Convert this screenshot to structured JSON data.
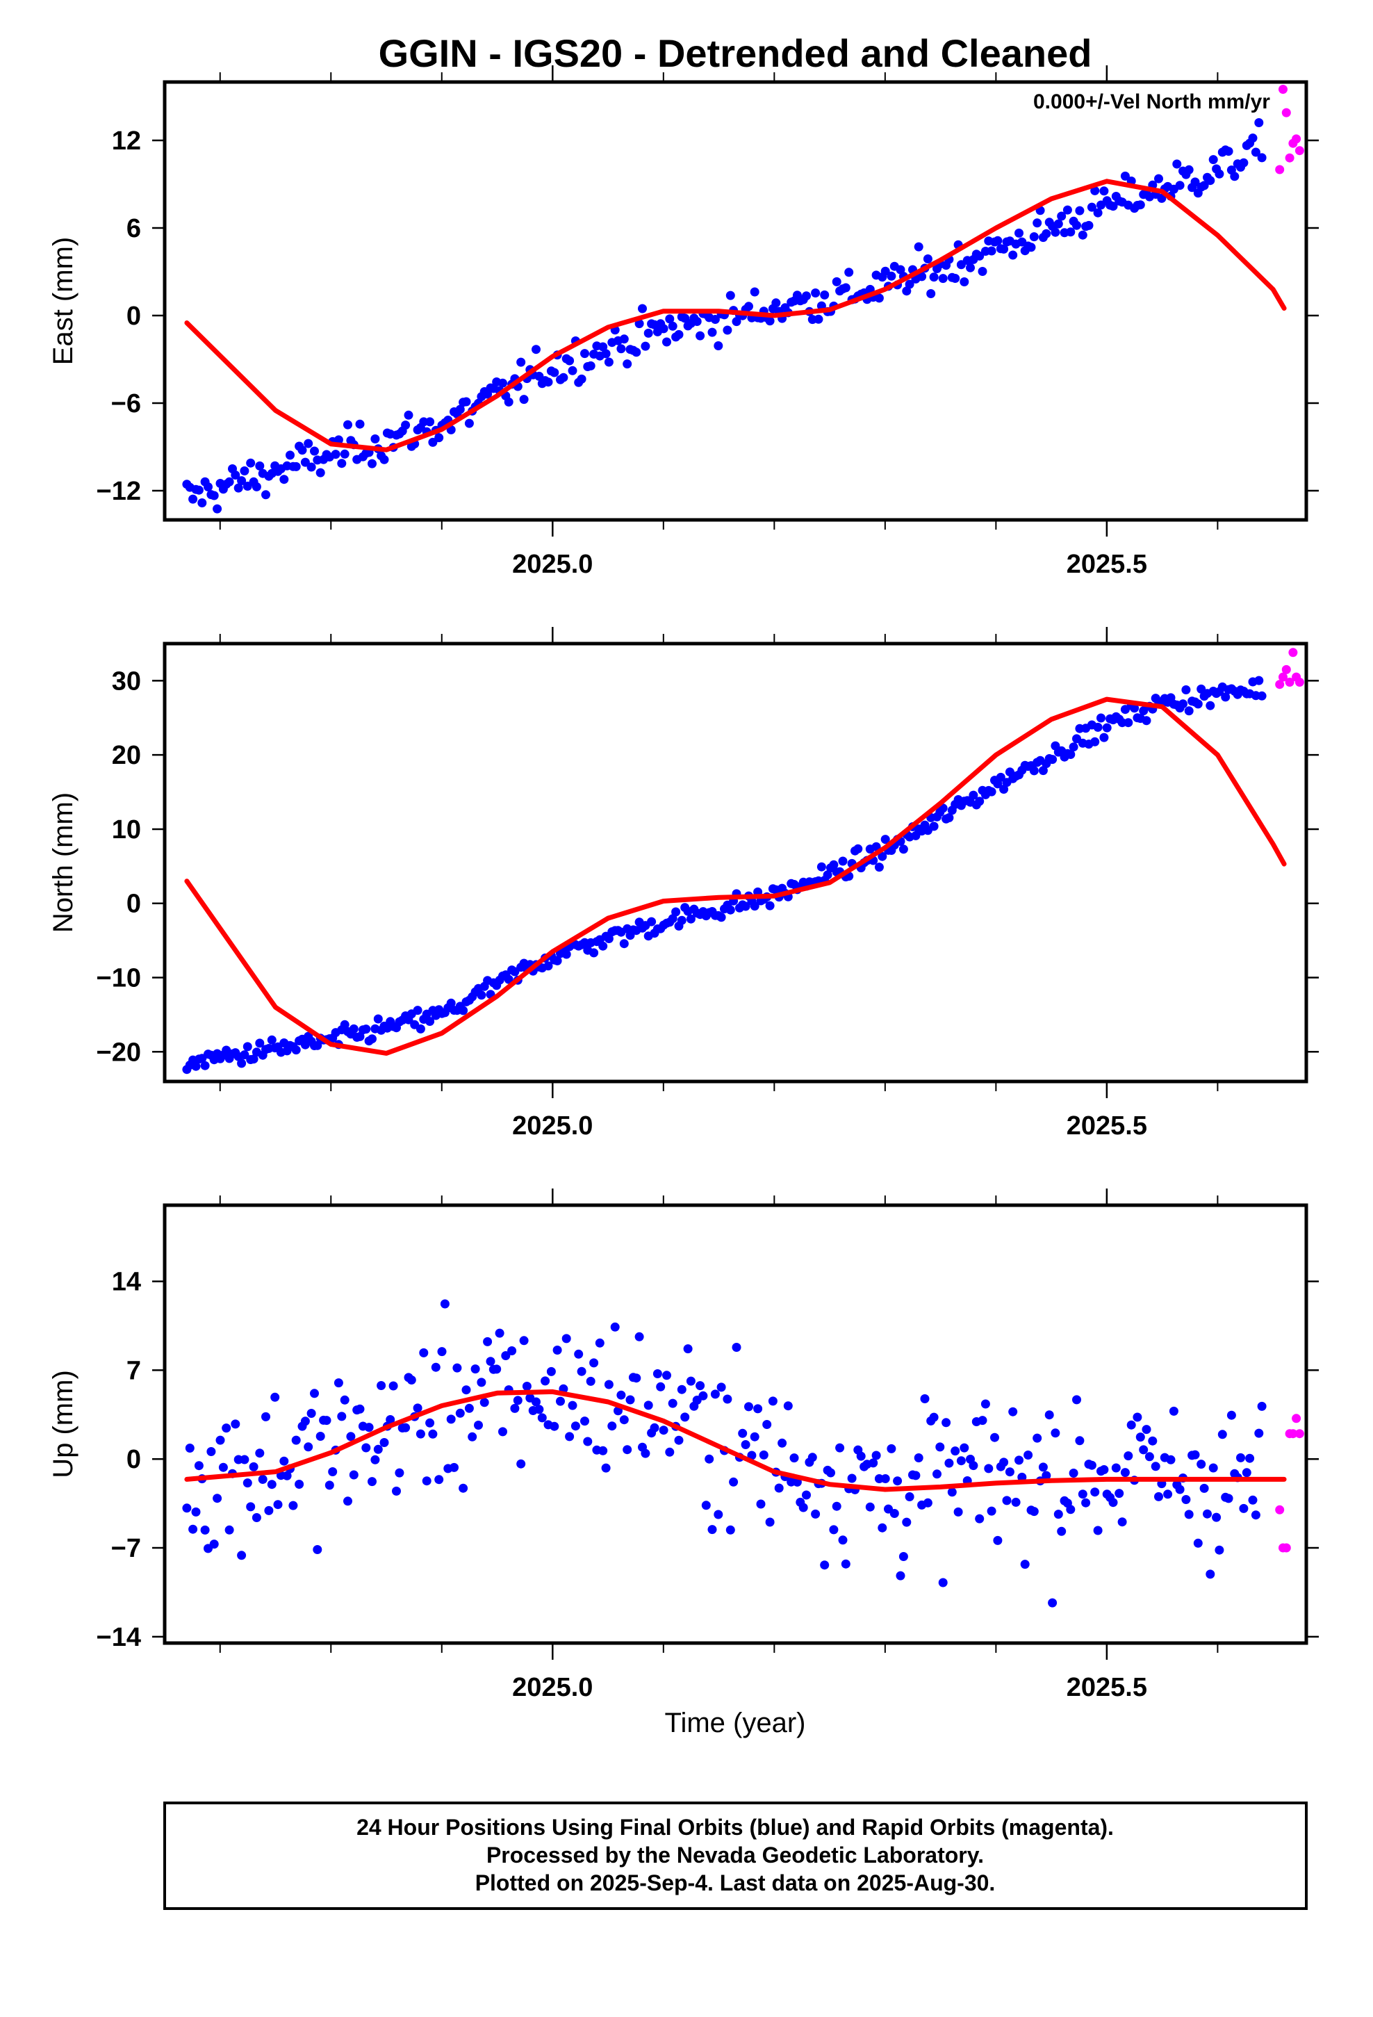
{
  "title": "GGIN - IGS20 - Detrended and Cleaned",
  "annotation": "0.000+/-Vel North mm/yr",
  "xlabel": "Time (year)",
  "footer": [
    "24 Hour Positions Using Final Orbits (blue) and Rapid Orbits (magenta).",
    "Processed by the Nevada Geodetic Laboratory.",
    "Plotted on 2025-Sep-4. Last data on 2025-Aug-30."
  ],
  "colors": {
    "final": "#0000ff",
    "rapid": "#ff00ff",
    "model": "#ff0000"
  },
  "chart_data": [
    {
      "type": "scatter",
      "ylabel": "East (mm)",
      "xlim": [
        2024.65,
        2025.68
      ],
      "ylim": [
        -14,
        16
      ],
      "xticks": [
        2025.0,
        2025.5
      ],
      "xtick_labels": [
        "2025.0",
        "2025.5"
      ],
      "yticks": [
        -12,
        -6,
        0,
        6,
        12
      ],
      "ytick_labels": [
        "−12",
        "−6",
        "0",
        "6",
        "12"
      ],
      "series": [
        {
          "kind": "final_points",
          "trend": [
            [
              2024.67,
              -12.5
            ],
            [
              2024.8,
              -9.5
            ],
            [
              2024.9,
              -7.5
            ],
            [
              2025.0,
              -3.5
            ],
            [
              2025.1,
              -1.0
            ],
            [
              2025.2,
              0.5
            ],
            [
              2025.3,
              2.0
            ],
            [
              2025.4,
              4.5
            ],
            [
              2025.5,
              7.5
            ],
            [
              2025.6,
              10.0
            ],
            [
              2025.64,
              11.5
            ]
          ],
          "scatter": 1.0,
          "spacing": 0.00274
        },
        {
          "kind": "rapid_points",
          "x": [
            2025.656,
            2025.659,
            2025.662,
            2025.665,
            2025.668,
            2025.671,
            2025.674
          ],
          "y": [
            10.0,
            15.5,
            13.9,
            10.8,
            11.8,
            12.1,
            11.3
          ]
        },
        {
          "kind": "model",
          "x": [
            2024.67,
            2024.75,
            2024.8,
            2024.85,
            2024.9,
            2024.95,
            2025.0,
            2025.05,
            2025.1,
            2025.15,
            2025.2,
            2025.25,
            2025.3,
            2025.35,
            2025.4,
            2025.45,
            2025.5,
            2025.55,
            2025.6,
            2025.65,
            2025.66
          ],
          "y": [
            -0.5,
            -6.5,
            -8.8,
            -9.2,
            -7.8,
            -5.5,
            -2.8,
            -0.8,
            0.3,
            0.3,
            0.0,
            0.4,
            1.8,
            3.8,
            6.0,
            8.0,
            9.2,
            8.5,
            5.5,
            1.8,
            0.5
          ]
        }
      ]
    },
    {
      "type": "scatter",
      "ylabel": "North (mm)",
      "xlim": [
        2024.65,
        2025.68
      ],
      "ylim": [
        -24,
        35
      ],
      "xticks": [
        2025.0,
        2025.5
      ],
      "xtick_labels": [
        "2025.0",
        "2025.5"
      ],
      "yticks": [
        -20,
        -10,
        0,
        10,
        20,
        30
      ],
      "ytick_labels": [
        "−20",
        "−10",
        "0",
        "10",
        "20",
        "30"
      ],
      "series": [
        {
          "kind": "final_points",
          "trend": [
            [
              2024.67,
              -21.5
            ],
            [
              2024.8,
              -18.5
            ],
            [
              2024.9,
              -15.0
            ],
            [
              2025.0,
              -7.0
            ],
            [
              2025.1,
              -2.5
            ],
            [
              2025.2,
              1.0
            ],
            [
              2025.3,
              7.0
            ],
            [
              2025.4,
              16.0
            ],
            [
              2025.5,
              24.0
            ],
            [
              2025.55,
              27.0
            ],
            [
              2025.64,
              29.0
            ]
          ],
          "scatter": 1.0,
          "spacing": 0.00274
        },
        {
          "kind": "rapid_points",
          "x": [
            2025.656,
            2025.659,
            2025.662,
            2025.665,
            2025.668,
            2025.671,
            2025.674
          ],
          "y": [
            29.5,
            30.5,
            31.5,
            29.8,
            33.8,
            30.5,
            29.8
          ]
        },
        {
          "kind": "model",
          "x": [
            2024.67,
            2024.75,
            2024.8,
            2024.85,
            2024.9,
            2024.95,
            2025.0,
            2025.05,
            2025.1,
            2025.15,
            2025.2,
            2025.25,
            2025.3,
            2025.35,
            2025.4,
            2025.45,
            2025.5,
            2025.55,
            2025.6,
            2025.65,
            2025.66
          ],
          "y": [
            3.0,
            -14.0,
            -19.0,
            -20.2,
            -17.5,
            -12.5,
            -6.5,
            -2.0,
            0.3,
            0.8,
            1.0,
            2.8,
            7.5,
            13.5,
            20.0,
            24.8,
            27.5,
            26.5,
            20.0,
            8.0,
            5.3
          ]
        }
      ]
    },
    {
      "type": "scatter",
      "ylabel": "Up (mm)",
      "xlim": [
        2024.65,
        2025.68
      ],
      "ylim": [
        -14.5,
        20
      ],
      "xticks": [
        2025.0,
        2025.5
      ],
      "xtick_labels": [
        "2025.0",
        "2025.5"
      ],
      "yticks": [
        -14,
        -7,
        0,
        7,
        14
      ],
      "ytick_labels": [
        "−14",
        "−7",
        "0",
        "7",
        "14"
      ],
      "series": [
        {
          "kind": "final_points",
          "trend": [
            [
              2024.67,
              -1.5
            ],
            [
              2024.8,
              0.5
            ],
            [
              2024.9,
              4.0
            ],
            [
              2025.0,
              5.5
            ],
            [
              2025.1,
              4.0
            ],
            [
              2025.2,
              0.0
            ],
            [
              2025.3,
              -2.5
            ],
            [
              2025.4,
              -1.5
            ],
            [
              2025.5,
              -1.0
            ],
            [
              2025.64,
              -2.0
            ]
          ],
          "scatter": 4.5,
          "spacing": 0.00274
        },
        {
          "kind": "rapid_points",
          "x": [
            2025.656,
            2025.659,
            2025.662,
            2025.665,
            2025.668,
            2025.671,
            2025.674
          ],
          "y": [
            -4.0,
            -7.0,
            -7.0,
            2.0,
            2.0,
            3.2,
            2.0
          ]
        },
        {
          "kind": "model",
          "x": [
            2024.67,
            2024.75,
            2024.8,
            2024.85,
            2024.9,
            2024.95,
            2025.0,
            2025.05,
            2025.1,
            2025.15,
            2025.2,
            2025.25,
            2025.3,
            2025.35,
            2025.4,
            2025.45,
            2025.5,
            2025.55,
            2025.6,
            2025.65,
            2025.66
          ],
          "y": [
            -1.6,
            -1.0,
            0.5,
            2.5,
            4.2,
            5.2,
            5.3,
            4.5,
            3.0,
            1.0,
            -1.0,
            -2.0,
            -2.4,
            -2.2,
            -1.9,
            -1.7,
            -1.6,
            -1.6,
            -1.6,
            -1.6,
            -1.6
          ]
        }
      ]
    }
  ]
}
